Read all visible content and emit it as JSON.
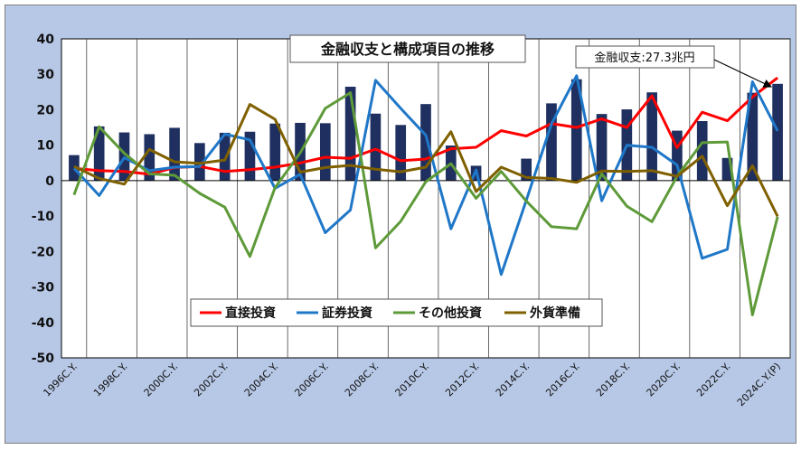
{
  "chart_data": {
    "type": "bar+line",
    "title": "金融収支と構成項目の推移",
    "annotation": "金融収支:27.3兆円",
    "ylim": [
      -50,
      40
    ],
    "yticks": [
      40,
      30,
      20,
      10,
      0,
      -10,
      -20,
      -30,
      -40,
      -50
    ],
    "xtick_labels": [
      "1996C.Y.",
      "1998C.Y.",
      "2000C.Y.",
      "2002C.Y.",
      "2004C.Y.",
      "2006C.Y.",
      "2008C.Y.",
      "2010C.Y.",
      "2012C.Y.",
      "2014C.Y.",
      "2016C.Y.",
      "2018C.Y.",
      "2020C.Y.",
      "2022C.Y.",
      "2024C.Y.(P)"
    ],
    "years": [
      1996,
      1997,
      1998,
      1999,
      2000,
      2001,
      2002,
      2003,
      2004,
      2005,
      2006,
      2007,
      2008,
      2009,
      2010,
      2011,
      2012,
      2013,
      2014,
      2015,
      2016,
      2017,
      2018,
      2019,
      2020,
      2021,
      2022,
      2023,
      2024
    ],
    "bars": {
      "color": "#1f3060",
      "values": [
        7.2,
        15.3,
        13.6,
        13.1,
        14.9,
        10.6,
        13.5,
        13.8,
        16.1,
        16.3,
        16.2,
        26.5,
        18.9,
        15.7,
        21.6,
        9.9,
        4.2,
        0.0,
        6.2,
        21.8,
        28.6,
        18.8,
        20.1,
        24.9,
        14.1,
        16.8,
        6.4,
        24.8,
        27.3
      ]
    },
    "series": [
      {
        "name": "直接投資",
        "color": "#ff0000",
        "values": [
          3.5,
          2.8,
          2.6,
          1.8,
          3.7,
          4.0,
          2.6,
          3.1,
          3.8,
          5.0,
          6.6,
          6.3,
          8.9,
          5.6,
          6.1,
          9.0,
          9.4,
          14.1,
          12.6,
          16.1,
          15.0,
          17.4,
          15.0,
          23.9,
          9.3,
          19.3,
          16.9,
          23.6,
          29.0
        ]
      },
      {
        "name": "証券投資",
        "color": "#1f77c8",
        "values": [
          3.5,
          -4.2,
          6.5,
          2.8,
          3.8,
          4.0,
          13.1,
          11.5,
          -2.2,
          1.8,
          -14.7,
          -8.3,
          28.3,
          20.4,
          12.8,
          -13.6,
          3.0,
          -26.5,
          -5.5,
          16.0,
          29.6,
          -5.7,
          10.0,
          9.4,
          4.4,
          -21.9,
          -19.4,
          27.9,
          14.0
        ]
      },
      {
        "name": "その他投資",
        "color": "#5e9a39",
        "values": [
          -4.0,
          15.2,
          7.7,
          1.9,
          1.5,
          -3.6,
          -7.5,
          -21.4,
          -2.0,
          7.8,
          20.4,
          24.8,
          -19.0,
          -11.5,
          -0.3,
          4.8,
          -5.0,
          2.6,
          -5.8,
          -13.0,
          -13.6,
          1.9,
          -7.2,
          -11.6,
          1.2,
          10.7,
          10.9,
          -37.9,
          -10.2
        ]
      },
      {
        "name": "外貨準備",
        "color": "#7f6000",
        "values": [
          4.0,
          0.6,
          -1.0,
          8.8,
          5.3,
          4.9,
          5.8,
          21.5,
          17.3,
          2.4,
          3.7,
          4.3,
          3.2,
          2.5,
          3.8,
          13.8,
          -3.1,
          3.8,
          0.9,
          0.6,
          -0.5,
          2.7,
          2.6,
          2.8,
          1.2,
          6.9,
          -7.1,
          4.2,
          -10.1
        ]
      }
    ],
    "legend": {
      "placement": "bottom-center",
      "entries": [
        "直接投資",
        "証券投資",
        "その他投資",
        "外貨準備"
      ]
    },
    "grid": {
      "vertical": true,
      "horizontal": false
    }
  }
}
